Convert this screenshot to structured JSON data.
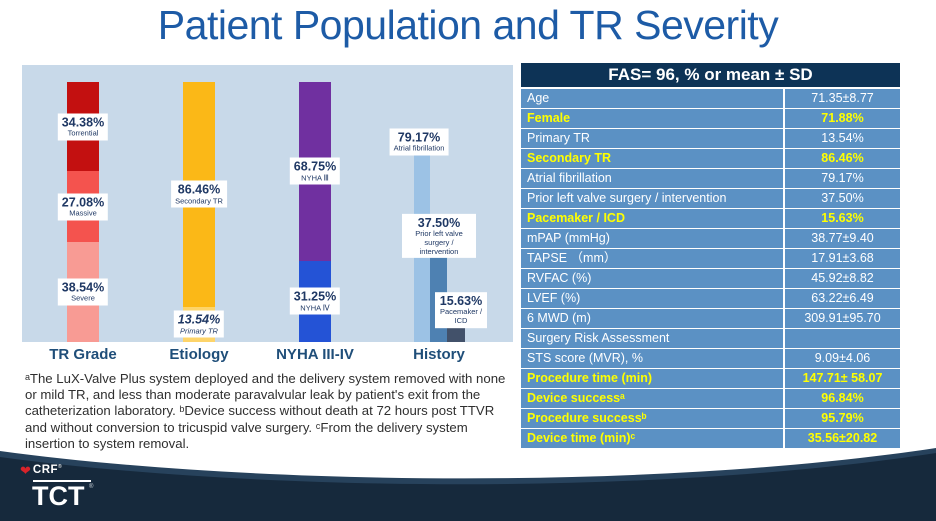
{
  "slide": {
    "title": "Patient Population and TR Severity"
  },
  "chart_data": {
    "type": "bar",
    "subtype": "stacked-percent (first 3 columns) + grouped bars (History)",
    "ylim": [
      0,
      100
    ],
    "unit": "%",
    "grid": false,
    "legend": false,
    "categories": [
      "TR Grade",
      "Etiology",
      "NYHA III-IV",
      "History"
    ],
    "groups": [
      {
        "category": "TR Grade",
        "stacked": true,
        "segments": [
          {
            "label": "Torrential",
            "value": 34.38,
            "color": "#c31010"
          },
          {
            "label": "Massive",
            "value": 27.08,
            "color": "#f4534e"
          },
          {
            "label": "Severe",
            "value": 38.54,
            "color": "#f89b94"
          }
        ]
      },
      {
        "category": "Etiology",
        "stacked": true,
        "segments": [
          {
            "label": "Secondary TR",
            "value": 86.46,
            "color": "#fbb817"
          },
          {
            "label": "Primary TR",
            "value": 13.54,
            "color": "#fdd46a",
            "italic": true
          }
        ]
      },
      {
        "category": "NYHA III-IV",
        "stacked": true,
        "segments": [
          {
            "label": "NYHA Ⅲ",
            "value": 68.75,
            "color": "#7030a0"
          },
          {
            "label": "NYHA Ⅳ",
            "value": 31.25,
            "color": "#2453d6"
          }
        ]
      },
      {
        "category": "History",
        "stacked": false,
        "segments": [
          {
            "label": "Atrial fibrillation",
            "value": 79.17,
            "color": "#9cc2e5"
          },
          {
            "label": "Prior left valve surgery / intervention",
            "value": 37.5,
            "color": "#4e81b2"
          },
          {
            "label": "Pacemaker / ICD",
            "value": 15.63,
            "color": "#42516a"
          }
        ]
      }
    ]
  },
  "table": {
    "header": "FAS= 96, % or mean ± SD",
    "rows": [
      {
        "label": "Age",
        "value": "71.35±8.77",
        "highlight": false
      },
      {
        "label": "Female",
        "value": "71.88%",
        "highlight": true
      },
      {
        "label": "Primary TR",
        "value": "13.54%",
        "highlight": false
      },
      {
        "label": "Secondary TR",
        "value": "86.46%",
        "highlight": true
      },
      {
        "label": "Atrial  fibrillation",
        "value": "79.17%",
        "highlight": false
      },
      {
        "label": "Prior left valve surgery / intervention",
        "value": "37.50%",
        "highlight": false
      },
      {
        "label": "Pacemaker / ICD",
        "value": "15.63%",
        "highlight": true
      },
      {
        "label": "mPAP (mmHg)",
        "value": "38.77±9.40",
        "highlight": false
      },
      {
        "label": "TAPSE （mm）",
        "value": "17.91±3.68",
        "highlight": false
      },
      {
        "label": "RVFAC (%)",
        "value": "45.92±8.82",
        "highlight": false
      },
      {
        "label": "LVEF (%)",
        "value": "63.22±6.49",
        "highlight": false
      },
      {
        "label": "6 MWD (m)",
        "value": "309.91±95.70",
        "highlight": false
      },
      {
        "label": "Surgery Risk Assessment",
        "value": "",
        "highlight": false
      },
      {
        "label": "STS score (MVR), %",
        "value": "9.09±4.06",
        "highlight": false
      },
      {
        "label": "Procedure time (min)",
        "value": "147.71± 58.07",
        "highlight": true
      },
      {
        "label": "Device successᵃ",
        "value": "96.84%",
        "highlight": true
      },
      {
        "label": "Procedure successᵇ",
        "value": "95.79%",
        "highlight": true
      },
      {
        "label": "Device time (min)ᶜ",
        "value": "35.56±20.82",
        "highlight": true
      }
    ]
  },
  "footnote": "ᵃThe LuX-Valve Plus system deployed and the delivery system removed with none or mild TR, and less than moderate paravalvular leak by patient's exit from the catheterization laboratory. ᵇDevice success without death at 72 hours post TTVR and without conversion to tricuspid valve surgery. ᶜFrom the delivery system insertion to system removal.",
  "logo": {
    "crf": "CRF",
    "tct": "TCT",
    "registered": "®"
  },
  "colors": {
    "title_blue": "#1d5ba6",
    "panel_bg": "#c8d9e9",
    "label_navy": "#1f3864",
    "category_blue": "#1f4e79",
    "table_header_bg": "#0d3356",
    "table_row_bg": "#5b91c4",
    "table_highlight_text": "#ffff00",
    "band_navy": "#16293c",
    "band_navy_light": "#27425c",
    "heart_red": "#d8232a"
  }
}
